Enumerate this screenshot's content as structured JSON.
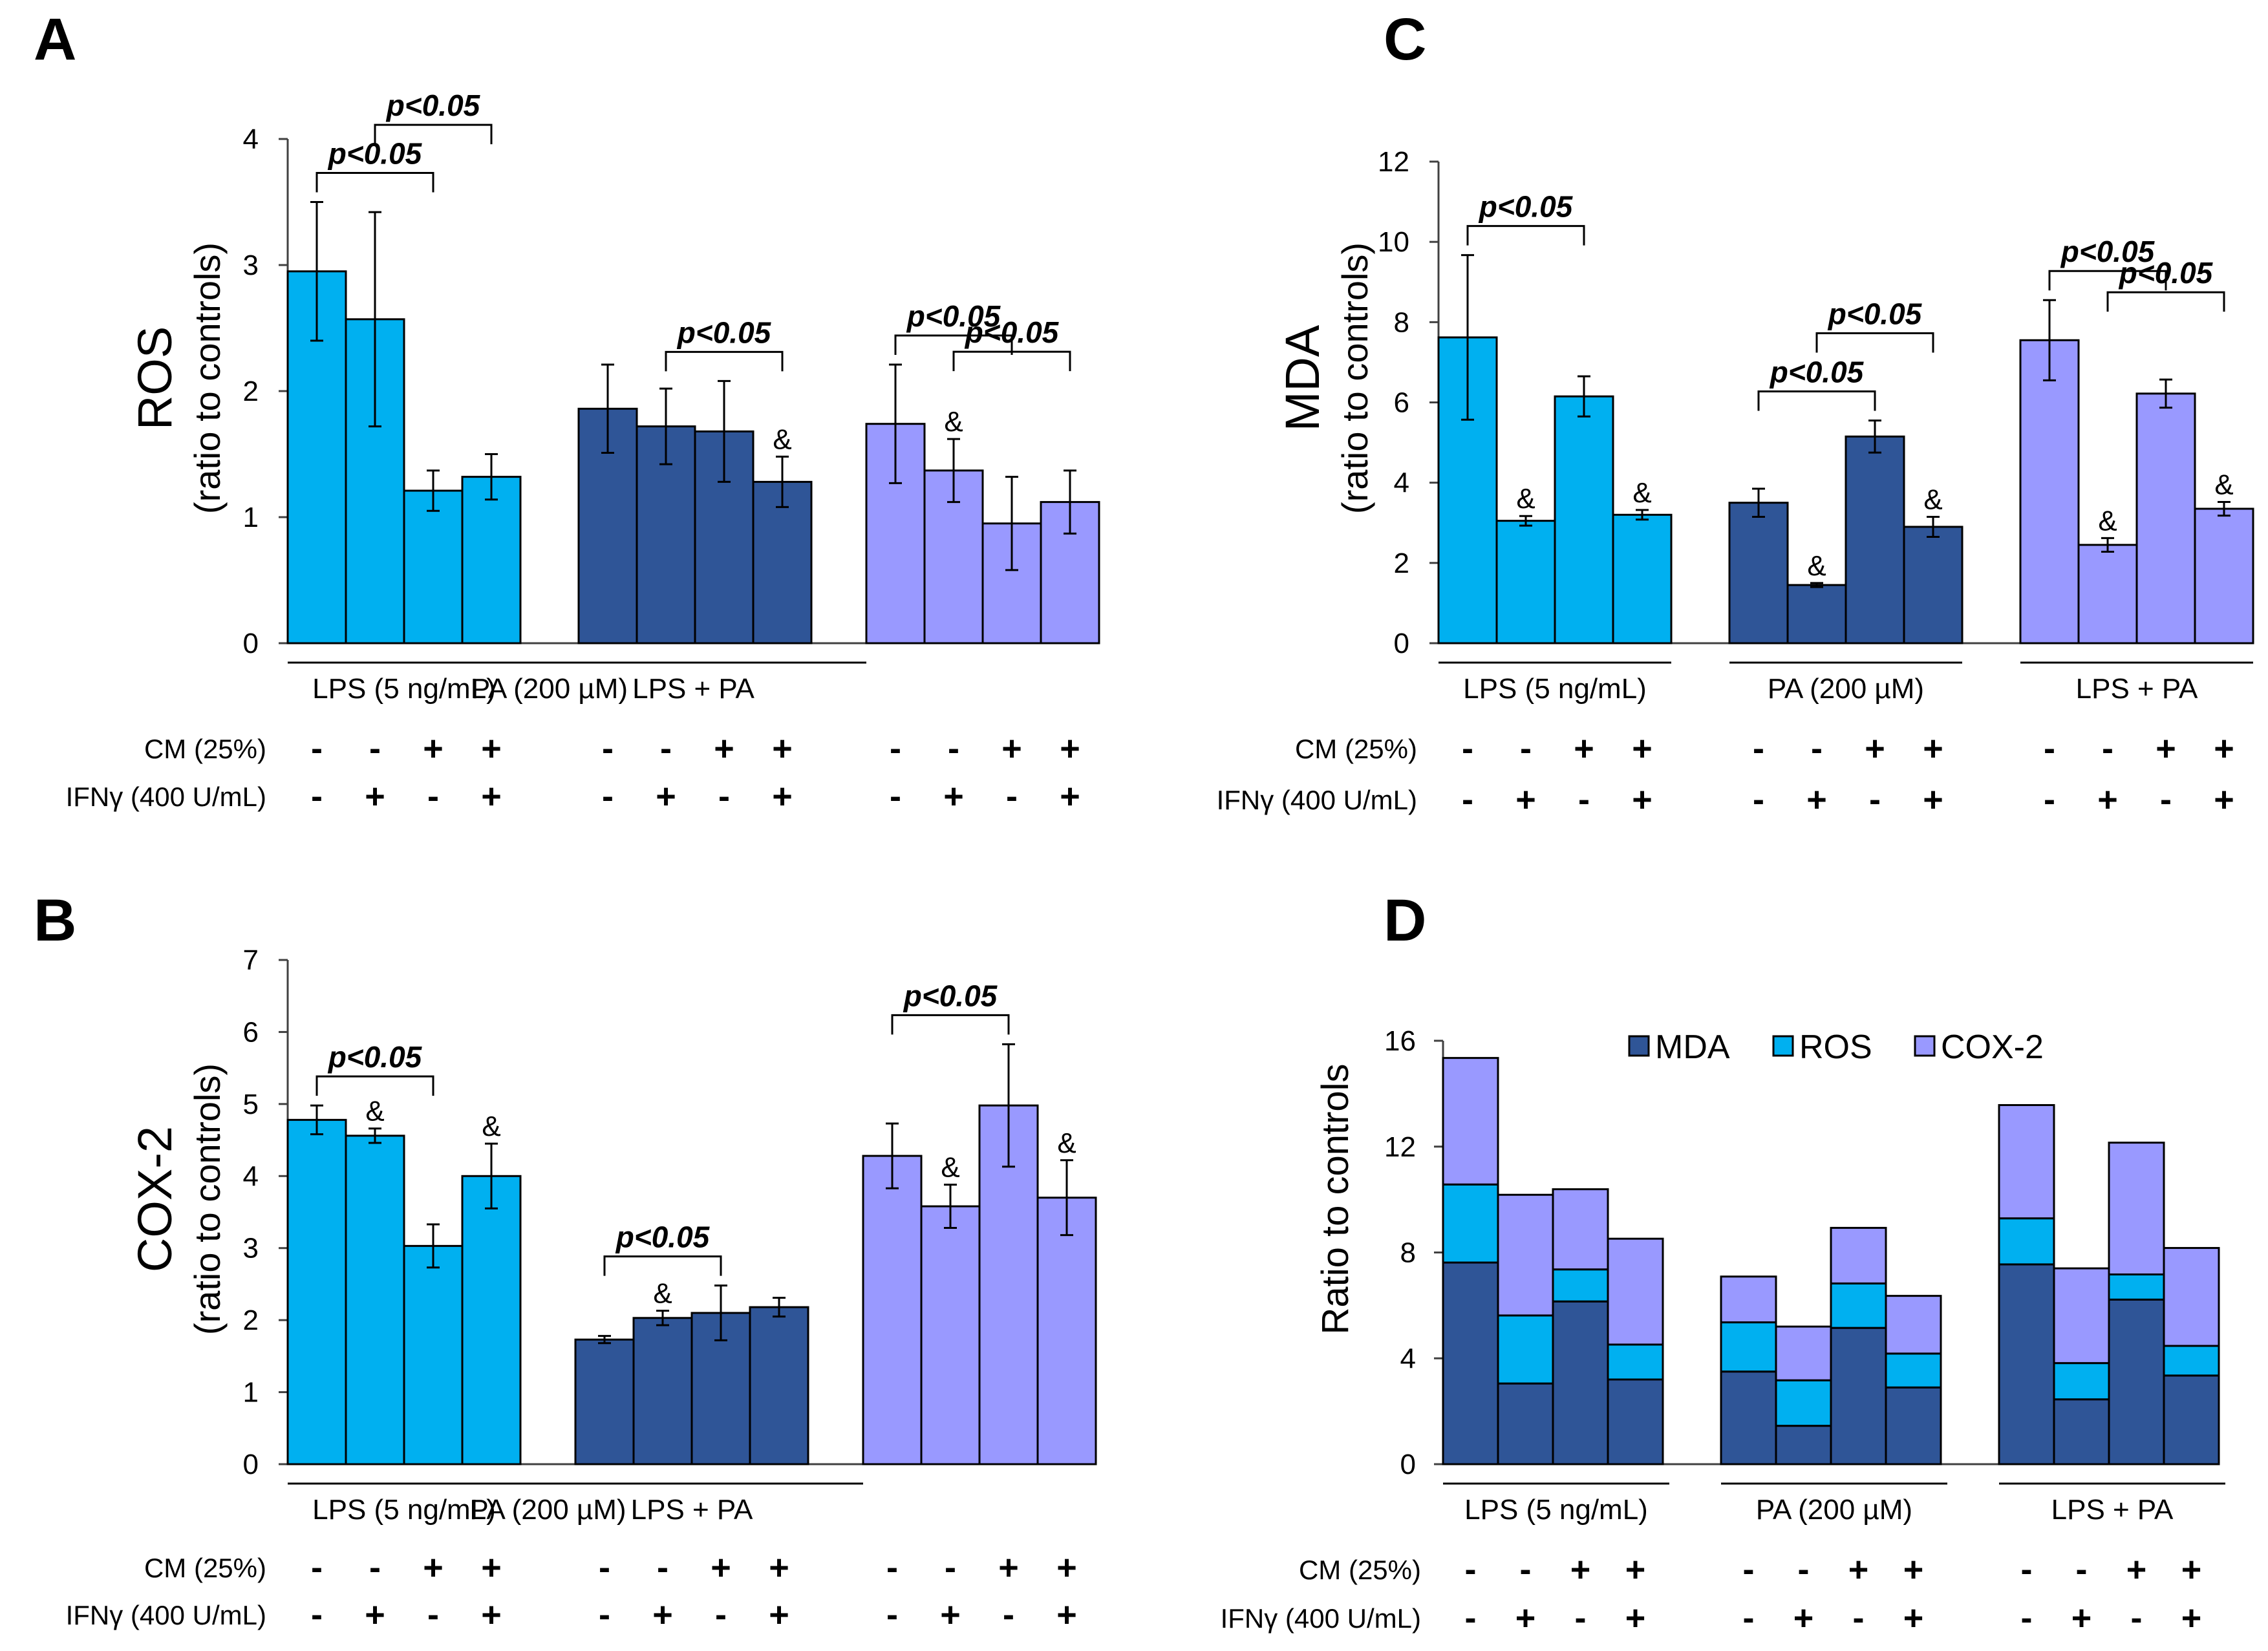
{
  "colors": {
    "lps": "#00B0F0",
    "pa": "#2F5597",
    "lps_pa": "#9999FF",
    "mda": "#2F5597",
    "ros": "#00B0F0",
    "cox2": "#9999FF",
    "axis": "#404040"
  },
  "treatments": {
    "cm_label": "CM (25%)",
    "ifn_label": "IFNγ (400 U/mL)",
    "cm_signs": [
      "-",
      "-",
      "+",
      "+"
    ],
    "ifn_signs": [
      "-",
      "+",
      "-",
      "+"
    ],
    "groups": [
      "LPS (5 ng/mL)",
      "PA (200 µM)",
      "LPS + PA"
    ]
  },
  "chart_data": [
    {
      "panel": "A",
      "type": "bar",
      "ylabel_main": "ROS",
      "ylabel_sub": "(ratio to controls)",
      "ylim": [
        0,
        4
      ],
      "yticks": [
        0,
        1,
        2,
        3,
        4
      ],
      "groups": [
        {
          "name": "LPS (5 ng/mL)",
          "color": "lps",
          "values": [
            2.95,
            2.57,
            1.21,
            1.32
          ],
          "errors": [
            0.55,
            0.85,
            0.16,
            0.18
          ],
          "marks": [
            "",
            "",
            "",
            ""
          ]
        },
        {
          "name": "PA (200 µM)",
          "color": "pa",
          "values": [
            1.86,
            1.72,
            1.68,
            1.28
          ],
          "errors": [
            0.35,
            0.3,
            0.4,
            0.2
          ],
          "marks": [
            "",
            "",
            "",
            "&"
          ]
        },
        {
          "name": "LPS + PA",
          "color": "lps_pa",
          "values": [
            1.74,
            1.37,
            0.95,
            1.12
          ],
          "errors": [
            0.47,
            0.25,
            0.37,
            0.25
          ],
          "marks": [
            "",
            "&",
            "",
            ""
          ]
        }
      ],
      "significance": [
        {
          "label": "p<0.05",
          "group": 0,
          "from": 0,
          "to": 2,
          "level": 1
        },
        {
          "label": "p<0.05",
          "group": 0,
          "from": 1,
          "to": 3,
          "level": 2
        },
        {
          "label": "p<0.05",
          "group": 1,
          "from": 1,
          "to": 3,
          "level": 1
        },
        {
          "label": "p<0.05",
          "group": 2,
          "from": 0,
          "to": 2,
          "level": 1
        },
        {
          "label": "p<0.05",
          "group": 2,
          "from": 1,
          "to": 3,
          "level": 2
        }
      ]
    },
    {
      "panel": "B",
      "type": "bar",
      "ylabel_main": "COX-2",
      "ylabel_sub": "(ratio to controls)",
      "ylim": [
        0,
        7
      ],
      "yticks": [
        0,
        1,
        2,
        3,
        4,
        5,
        6,
        7
      ],
      "groups": [
        {
          "name": "LPS (5 ng/mL)",
          "color": "lps",
          "values": [
            4.78,
            4.56,
            3.03,
            4.0
          ],
          "errors": [
            0.2,
            0.1,
            0.3,
            0.45
          ],
          "marks": [
            "",
            "&",
            "",
            "&"
          ]
        },
        {
          "name": "PA (200 µM)",
          "color": "pa",
          "values": [
            1.73,
            2.03,
            2.1,
            2.18
          ],
          "errors": [
            0.05,
            0.1,
            0.38,
            0.13
          ],
          "marks": [
            "",
            "&",
            "",
            ""
          ]
        },
        {
          "name": "LPS + PA",
          "color": "lps_pa",
          "values": [
            4.28,
            3.58,
            4.98,
            3.7
          ],
          "errors": [
            0.45,
            0.3,
            0.85,
            0.52
          ],
          "marks": [
            "",
            "&",
            "",
            "&"
          ]
        }
      ],
      "significance": [
        {
          "label": "p<0.05",
          "group": 0,
          "from": 0,
          "to": 2,
          "level": 1
        },
        {
          "label": "p<0.05",
          "group": 1,
          "from": 0,
          "to": 2,
          "level": 1
        },
        {
          "label": "p<0.05",
          "group": 2,
          "from": 0,
          "to": 2,
          "level": 1
        }
      ]
    },
    {
      "panel": "C",
      "type": "bar",
      "ylabel_main": "MDA",
      "ylabel_sub": "(ratio to controls)",
      "ylim": [
        0,
        12
      ],
      "yticks": [
        0,
        2,
        4,
        6,
        8,
        10,
        12
      ],
      "groups": [
        {
          "name": "LPS (5 ng/mL)",
          "color": "lps",
          "values": [
            7.62,
            3.05,
            6.15,
            3.2
          ],
          "errors": [
            2.05,
            0.12,
            0.5,
            0.12
          ],
          "marks": [
            "",
            "&",
            "",
            "&"
          ]
        },
        {
          "name": "PA (200 µM)",
          "color": "pa",
          "values": [
            3.5,
            1.45,
            5.15,
            2.9
          ],
          "errors": [
            0.35,
            0.05,
            0.4,
            0.25
          ],
          "marks": [
            "",
            "&",
            "",
            "&"
          ]
        },
        {
          "name": "LPS + PA",
          "color": "lps_pa",
          "values": [
            7.55,
            2.45,
            6.22,
            3.35
          ],
          "errors": [
            1.0,
            0.17,
            0.35,
            0.17
          ],
          "marks": [
            "",
            "&",
            "",
            "&"
          ]
        }
      ],
      "significance": [
        {
          "label": "p<0.05",
          "group": 0,
          "from": 0,
          "to": 2,
          "level": 1
        },
        {
          "label": "p<0.05",
          "group": 1,
          "from": 0,
          "to": 2,
          "level": 1
        },
        {
          "label": "p<0.05",
          "group": 1,
          "from": 1,
          "to": 3,
          "level": 2
        },
        {
          "label": "p<0.05",
          "group": 2,
          "from": 0,
          "to": 2,
          "level": 1
        },
        {
          "label": "p<0.05",
          "group": 2,
          "from": 1,
          "to": 3,
          "level": 2
        }
      ]
    },
    {
      "panel": "D",
      "type": "stacked-bar",
      "ylabel_main": "Ratio to controls",
      "ylim": [
        0,
        16
      ],
      "yticks": [
        0,
        4,
        8,
        12,
        16
      ],
      "legend": [
        "MDA",
        "ROS",
        "COX-2"
      ],
      "groups": [
        {
          "name": "LPS (5 ng/mL)",
          "mda": [
            7.62,
            3.05,
            6.15,
            3.2
          ],
          "ros": [
            2.95,
            2.57,
            1.21,
            1.32
          ],
          "cox2": [
            4.78,
            4.56,
            3.03,
            4.0
          ]
        },
        {
          "name": "PA (200 µM)",
          "mda": [
            3.5,
            1.45,
            5.15,
            2.9
          ],
          "ros": [
            1.86,
            1.72,
            1.68,
            1.28
          ],
          "cox2": [
            1.73,
            2.03,
            2.1,
            2.18
          ]
        },
        {
          "name": "LPS + PA",
          "mda": [
            7.55,
            2.45,
            6.22,
            3.35
          ],
          "ros": [
            1.74,
            1.37,
            0.95,
            1.12
          ],
          "cox2": [
            4.28,
            3.58,
            4.98,
            3.7
          ]
        }
      ]
    }
  ]
}
